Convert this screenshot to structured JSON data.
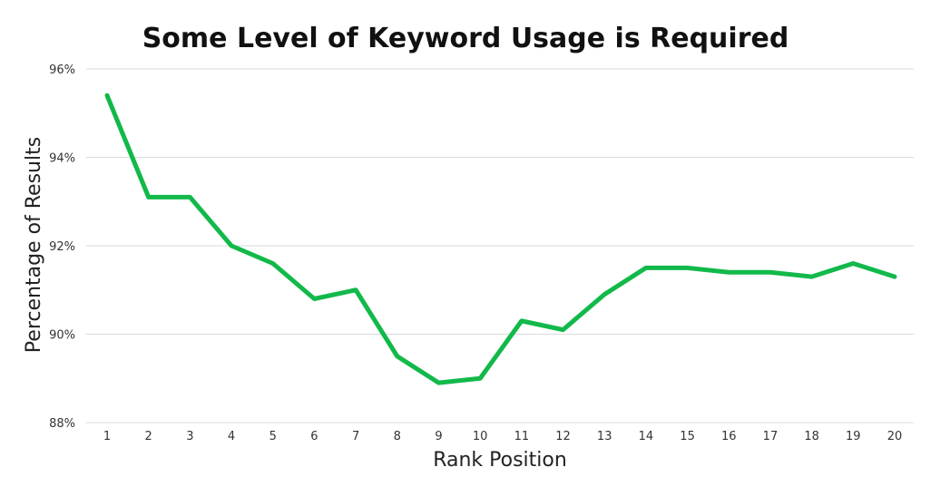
{
  "chart_data": {
    "type": "line",
    "title": "Some Level of Keyword Usage is Required",
    "xlabel": "Rank Position",
    "ylabel": "Percentage of Results",
    "x": [
      1,
      2,
      3,
      4,
      5,
      6,
      7,
      8,
      9,
      10,
      11,
      12,
      13,
      14,
      15,
      16,
      17,
      18,
      19,
      20
    ],
    "y_ticks": [
      "88%",
      "90%",
      "92%",
      "94%",
      "96%"
    ],
    "ylim": [
      88,
      96
    ],
    "grid": true,
    "series": [
      {
        "values": [
          95.4,
          93.1,
          93.1,
          92.0,
          91.6,
          90.8,
          91.0,
          89.5,
          88.9,
          89.0,
          90.3,
          90.1,
          90.9,
          91.5,
          91.5,
          91.4,
          91.4,
          91.3,
          91.6,
          91.3
        ],
        "color": "#12b94a"
      }
    ]
  }
}
